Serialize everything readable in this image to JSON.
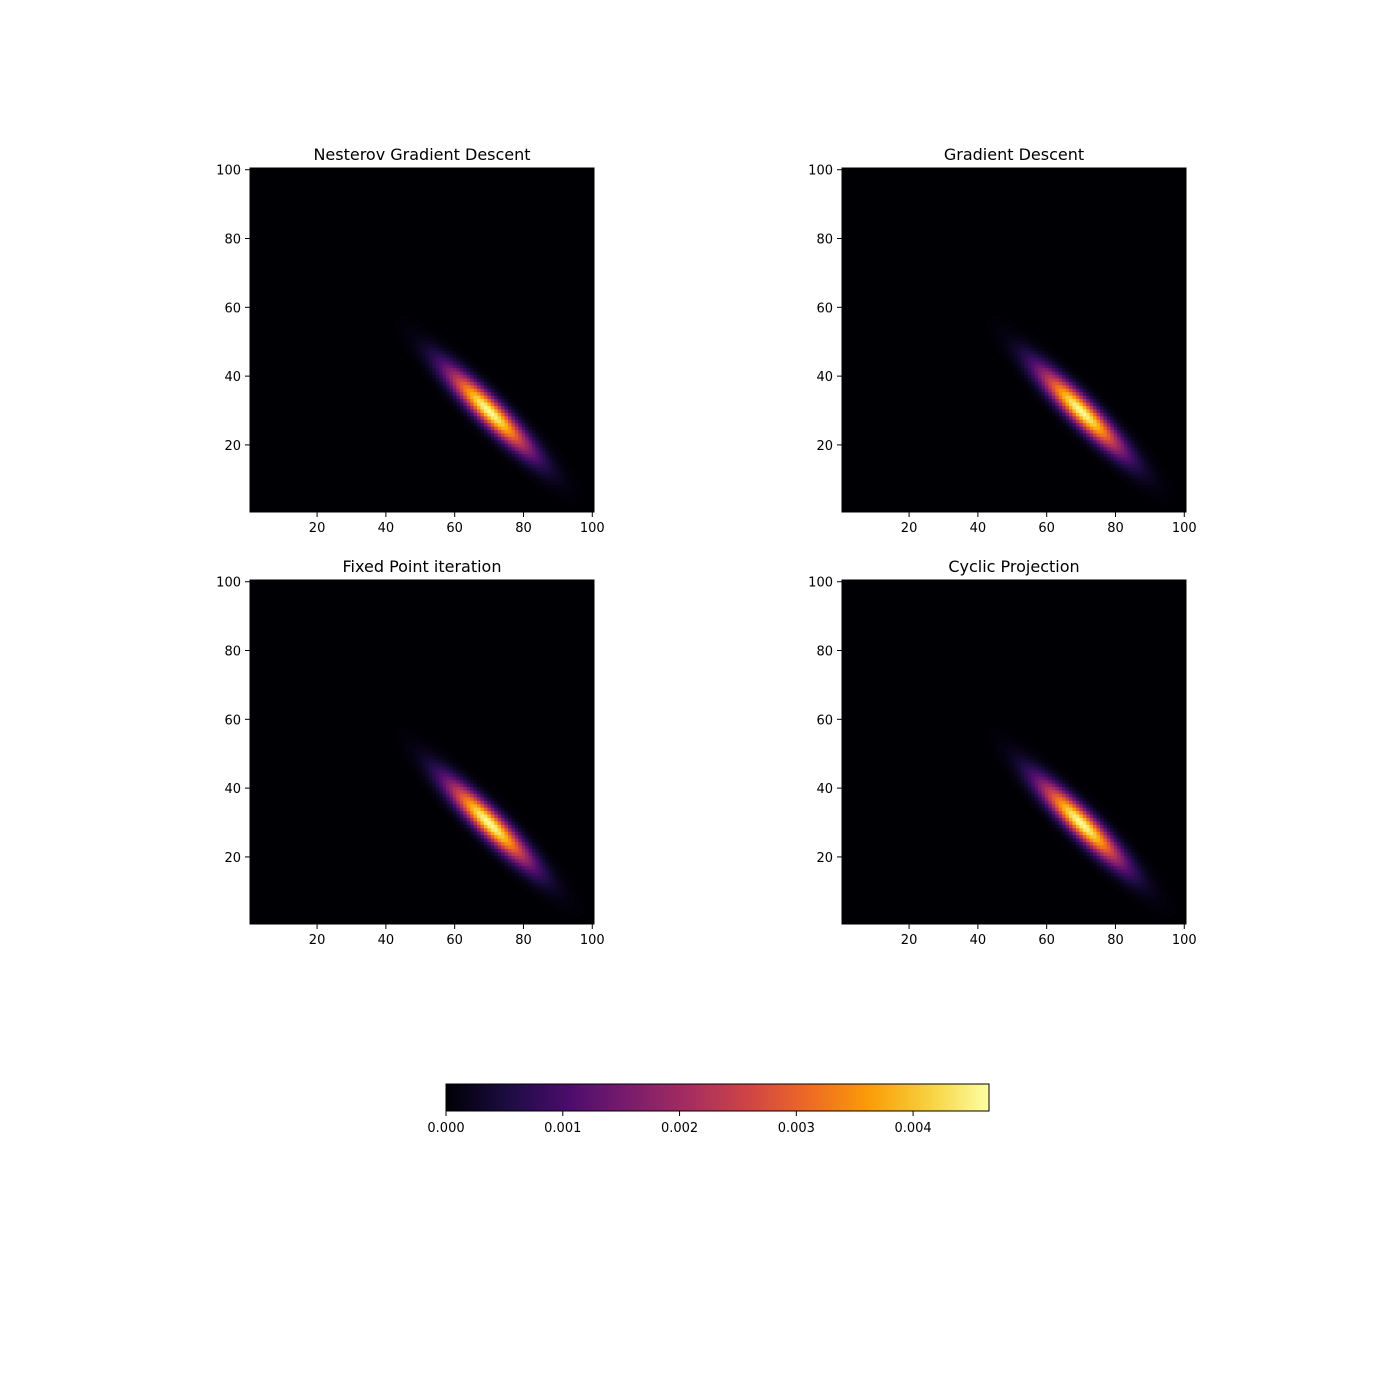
{
  "chart_data": [
    {
      "type": "heatmap",
      "title": "Nesterov Gradient Descent",
      "xlabel": "",
      "ylabel": "",
      "xlim": [
        0.5,
        100.5
      ],
      "ylim": [
        0.5,
        100.5
      ],
      "xticks": [
        20,
        40,
        60,
        80,
        100
      ],
      "yticks": [
        20,
        40,
        60,
        80,
        100
      ],
      "grid": false,
      "colormap": "inferno",
      "distribution": {
        "center": [
          70,
          30
        ],
        "major_axis_direction": [
          1,
          -1
        ],
        "sigma_major": 11.5,
        "sigma_minor": 2.4,
        "peak": 0.0046,
        "support_x": [
          37,
          100
        ],
        "support_y": [
          1,
          64
        ]
      }
    },
    {
      "type": "heatmap",
      "title": "Gradient Descent",
      "xlabel": "",
      "ylabel": "",
      "xlim": [
        0.5,
        100.5
      ],
      "ylim": [
        0.5,
        100.5
      ],
      "xticks": [
        20,
        40,
        60,
        80,
        100
      ],
      "yticks": [
        20,
        40,
        60,
        80,
        100
      ],
      "grid": false,
      "colormap": "inferno",
      "distribution": {
        "center": [
          70,
          30
        ],
        "major_axis_direction": [
          1,
          -1
        ],
        "sigma_major": 11.5,
        "sigma_minor": 2.4,
        "peak": 0.0046,
        "support_x": [
          37,
          100
        ],
        "support_y": [
          1,
          64
        ]
      }
    },
    {
      "type": "heatmap",
      "title": "Fixed Point iteration",
      "xlabel": "",
      "ylabel": "",
      "xlim": [
        0.5,
        100.5
      ],
      "ylim": [
        0.5,
        100.5
      ],
      "xticks": [
        20,
        40,
        60,
        80,
        100
      ],
      "yticks": [
        20,
        40,
        60,
        80,
        100
      ],
      "grid": false,
      "colormap": "inferno",
      "distribution": {
        "center": [
          70,
          30
        ],
        "major_axis_direction": [
          1,
          -1
        ],
        "sigma_major": 11.5,
        "sigma_minor": 2.4,
        "peak": 0.0046,
        "support_x": [
          37,
          100
        ],
        "support_y": [
          1,
          64
        ]
      }
    },
    {
      "type": "heatmap",
      "title": "Cyclic Projection",
      "xlabel": "",
      "ylabel": "",
      "xlim": [
        0.5,
        100.5
      ],
      "ylim": [
        0.5,
        100.5
      ],
      "xticks": [
        20,
        40,
        60,
        80,
        100
      ],
      "yticks": [
        20,
        40,
        60,
        80,
        100
      ],
      "grid": false,
      "colormap": "inferno",
      "distribution": {
        "center": [
          70,
          30
        ],
        "major_axis_direction": [
          1,
          -1
        ],
        "sigma_major": 11.5,
        "sigma_minor": 2.4,
        "peak": 0.0046,
        "support_x": [
          37,
          100
        ],
        "support_y": [
          1,
          64
        ]
      }
    }
  ],
  "colorbar": {
    "orientation": "horizontal",
    "colormap": "inferno",
    "range": [
      0,
      0.00465
    ],
    "ticks": [
      0,
      0.001,
      0.002,
      0.003,
      0.004
    ],
    "tick_labels": [
      "0.000",
      "0.001",
      "0.002",
      "0.003",
      "0.004"
    ]
  },
  "colors": {
    "inferno": [
      "#000004",
      "#1b0c41",
      "#4a0c6b",
      "#781c6d",
      "#a52c60",
      "#cf4446",
      "#ed6925",
      "#fb9b06",
      "#f7d13d",
      "#fcffa4"
    ]
  }
}
